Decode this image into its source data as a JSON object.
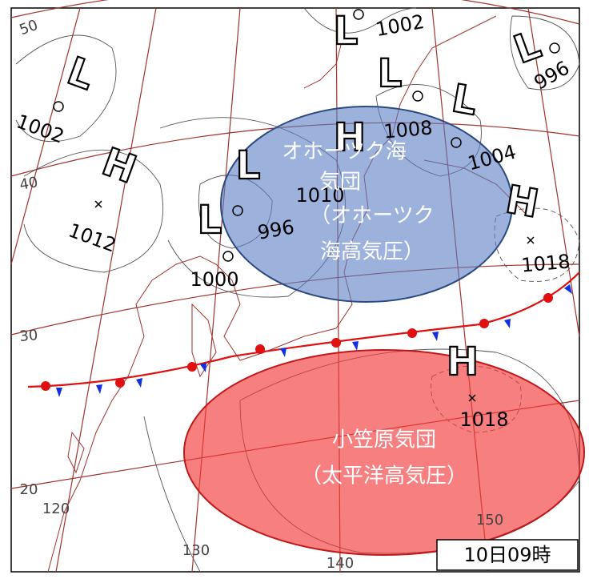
{
  "latitude_labels": [
    50,
    40,
    30,
    20
  ],
  "longitude_labels": [
    120,
    130,
    140,
    150
  ],
  "symbols": [
    "L",
    "L",
    "L",
    "L",
    "L",
    "L",
    "L",
    "H",
    "H",
    "H",
    "H"
  ],
  "pressure_labels": [
    1002,
    996,
    1002,
    1012,
    1010,
    1008,
    1004,
    996,
    1000,
    1018,
    1018
  ],
  "air_masses": [
    {
      "lines": [
        "オホーツク海",
        "気団",
        "（オホーツク",
        "海高気圧）"
      ]
    },
    {
      "lines": [
        "小笠原気団",
        "（太平洋高気圧）"
      ]
    }
  ],
  "timestamp": "10日09時"
}
